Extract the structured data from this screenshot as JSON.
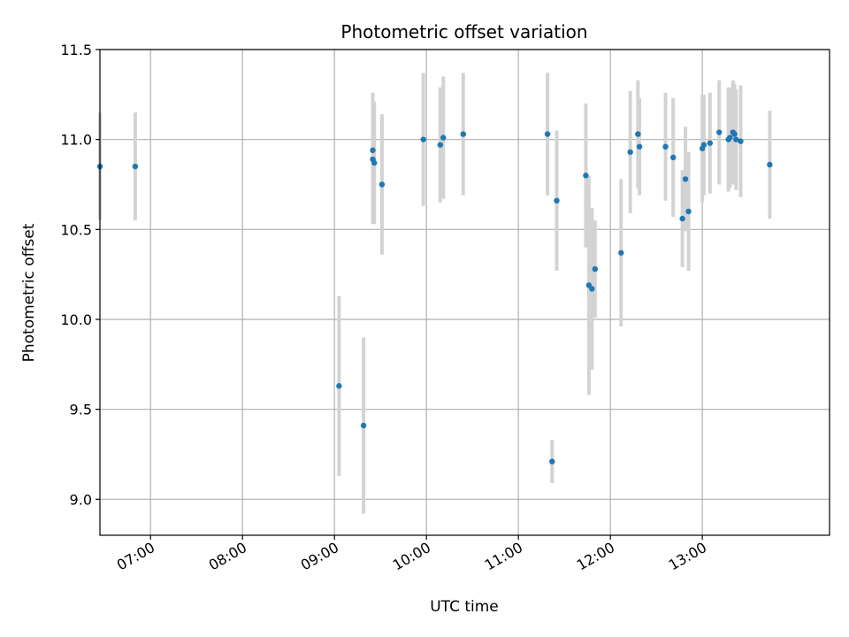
{
  "chart_data": {
    "type": "scatter",
    "title": "Photometric offset variation",
    "xlabel": "UTC time",
    "ylabel": "Photometric offset",
    "ylim": [
      8.8,
      11.5
    ],
    "xlim": [
      "06:27",
      "14:23"
    ],
    "grid": true,
    "point_color": "#1f77b4",
    "error_color": "#d3d3d3",
    "x_ticks": [
      "07:00",
      "08:00",
      "09:00",
      "10:00",
      "11:00",
      "12:00",
      "13:00"
    ],
    "y_ticks": [
      9.0,
      9.5,
      10.0,
      10.5,
      11.0,
      11.5
    ],
    "y_tick_labels": [
      "9.0",
      "9.5",
      "10.0",
      "10.5",
      "11.0",
      "11.5"
    ],
    "points": [
      {
        "x": "06:27",
        "y": 10.85,
        "err": 0.3
      },
      {
        "x": "06:50",
        "y": 10.85,
        "err": 0.3
      },
      {
        "x": "09:03",
        "y": 9.63,
        "err": 0.5
      },
      {
        "x": "09:19",
        "y": 9.41,
        "err": 0.49
      },
      {
        "x": "09:25",
        "y": 10.94,
        "err": 0.32
      },
      {
        "x": "09:25",
        "y": 10.89,
        "err": 0.36
      },
      {
        "x": "09:26",
        "y": 10.87,
        "err": 0.34
      },
      {
        "x": "09:31",
        "y": 10.75,
        "err": 0.39
      },
      {
        "x": "09:58",
        "y": 11.0,
        "err": 0.37
      },
      {
        "x": "10:09",
        "y": 10.97,
        "err": 0.32
      },
      {
        "x": "10:11",
        "y": 11.01,
        "err": 0.34
      },
      {
        "x": "10:24",
        "y": 11.03,
        "err": 0.34
      },
      {
        "x": "11:19",
        "y": 11.03,
        "err": 0.34
      },
      {
        "x": "11:22",
        "y": 9.21,
        "err": 0.12
      },
      {
        "x": "11:25",
        "y": 10.66,
        "err": 0.39
      },
      {
        "x": "11:44",
        "y": 10.8,
        "err": 0.4
      },
      {
        "x": "11:46",
        "y": 10.19,
        "err": 0.61
      },
      {
        "x": "11:48",
        "y": 10.17,
        "err": 0.45
      },
      {
        "x": "11:50",
        "y": 10.28,
        "err": 0.27
      },
      {
        "x": "12:07",
        "y": 10.37,
        "err": 0.41
      },
      {
        "x": "12:13",
        "y": 10.93,
        "err": 0.34
      },
      {
        "x": "12:18",
        "y": 11.03,
        "err": 0.3
      },
      {
        "x": "12:19",
        "y": 10.96,
        "err": 0.27
      },
      {
        "x": "12:36",
        "y": 10.96,
        "err": 0.3
      },
      {
        "x": "12:41",
        "y": 10.9,
        "err": 0.33
      },
      {
        "x": "12:47",
        "y": 10.56,
        "err": 0.27
      },
      {
        "x": "12:49",
        "y": 10.78,
        "err": 0.29
      },
      {
        "x": "12:51",
        "y": 10.6,
        "err": 0.33
      },
      {
        "x": "13:00",
        "y": 10.95,
        "err": 0.3
      },
      {
        "x": "13:01",
        "y": 10.97,
        "err": 0.28
      },
      {
        "x": "13:05",
        "y": 10.98,
        "err": 0.28
      },
      {
        "x": "13:11",
        "y": 11.04,
        "err": 0.29
      },
      {
        "x": "13:17",
        "y": 11.0,
        "err": 0.29
      },
      {
        "x": "13:18",
        "y": 11.01,
        "err": 0.28
      },
      {
        "x": "13:20",
        "y": 11.04,
        "err": 0.29
      },
      {
        "x": "13:21",
        "y": 11.03,
        "err": 0.28
      },
      {
        "x": "13:22",
        "y": 11.0,
        "err": 0.28
      },
      {
        "x": "13:25",
        "y": 10.99,
        "err": 0.31
      },
      {
        "x": "13:44",
        "y": 10.86,
        "err": 0.3
      }
    ]
  }
}
